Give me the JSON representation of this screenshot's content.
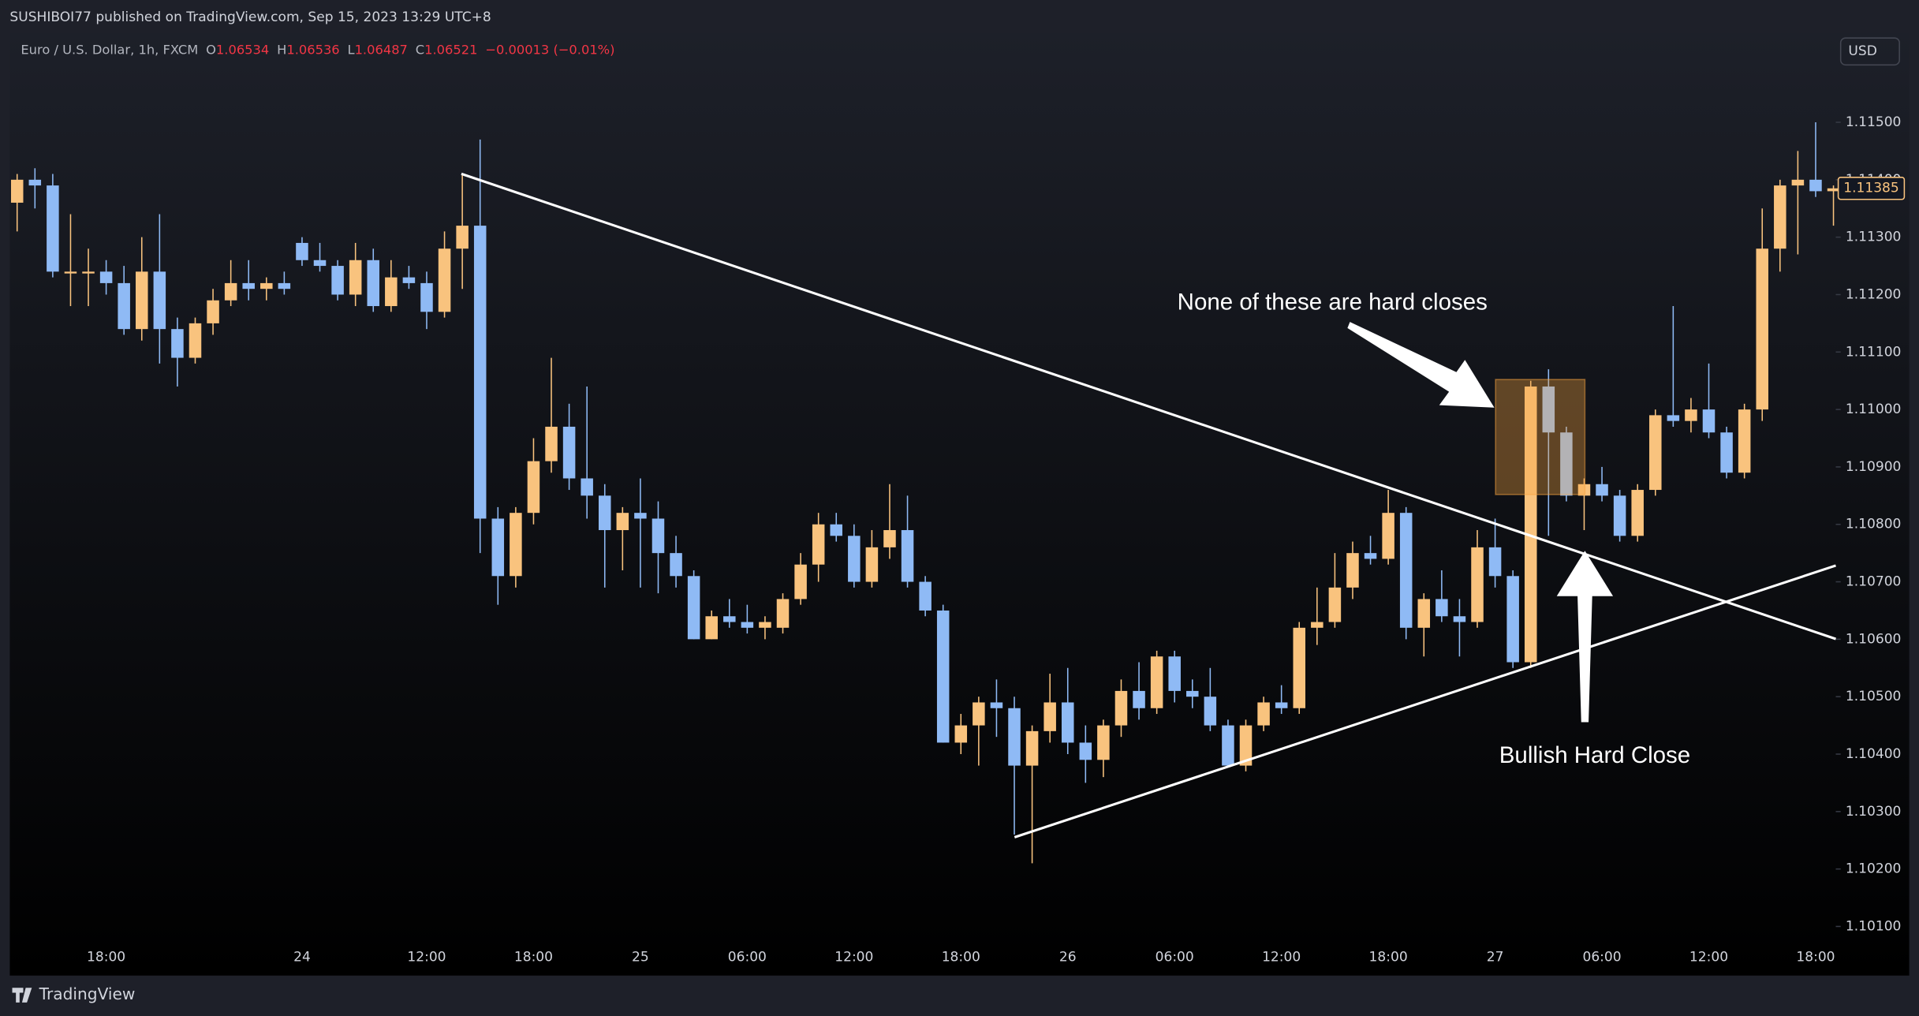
{
  "header": {
    "publisher": "SUSHIBOI77 published on TradingView.com, Sep 15, 2023 13:29 UTC+8"
  },
  "footer": {
    "brand": "TradingView"
  },
  "chart_data": {
    "type": "candlestick",
    "title": "Euro / U.S. Dollar, 1h, FXCM",
    "ohlc_legend": [
      {
        "label": "O",
        "value": "1.06534"
      },
      {
        "label": "H",
        "value": "1.06536"
      },
      {
        "label": "L",
        "value": "1.06487"
      },
      {
        "label": "C",
        "value": "1.06521"
      }
    ],
    "change": "−0.00013 (−0.01%)",
    "currency": "USD",
    "last_price_label": "1.11385",
    "annotations": [
      "None of these are hard closes",
      "Bullish Hard Close"
    ],
    "up_color": "#f9c37e",
    "down_color": "#8fbaf5",
    "grid": false,
    "categories": [
      null,
      null,
      null,
      null,
      null,
      "18:00",
      null,
      null,
      null,
      null,
      null,
      null,
      null,
      null,
      null,
      null,
      "24",
      null,
      null,
      null,
      null,
      null,
      null,
      "12:00",
      null,
      null,
      null,
      null,
      null,
      "18:00",
      null,
      null,
      null,
      null,
      null,
      "25",
      null,
      null,
      null,
      null,
      null,
      "06:00",
      null,
      null,
      null,
      null,
      null,
      "12:00",
      null,
      null,
      null,
      null,
      null,
      "18:00",
      null,
      null,
      null,
      null,
      null,
      "26",
      null,
      null,
      null,
      null,
      null,
      "06:00",
      null,
      null,
      null,
      null,
      null,
      "12:00",
      null,
      null,
      null,
      null,
      null,
      "18:00",
      null,
      null,
      null,
      null,
      null,
      "27",
      null,
      null,
      null,
      null,
      null,
      "06:00",
      null,
      null,
      null,
      null,
      null,
      "12:00",
      null,
      null,
      null,
      null,
      null,
      "18:00",
      null
    ],
    "open": [
      1.1136,
      1.114,
      1.1139,
      1.1124,
      1.1124,
      1.1124,
      1.1122,
      1.1114,
      1.1124,
      1.1114,
      1.1109,
      1.1115,
      1.1119,
      1.1122,
      1.1121,
      1.1122,
      1.1129,
      1.1126,
      1.1125,
      1.112,
      1.1126,
      1.1118,
      1.1123,
      1.1122,
      1.1117,
      1.1128,
      1.1132,
      1.1081,
      1.1071,
      1.1082,
      1.1091,
      1.1097,
      1.1088,
      1.1085,
      1.1079,
      1.1082,
      1.1081,
      1.1075,
      1.1071,
      1.106,
      1.1064,
      1.1063,
      1.1062,
      1.1062,
      1.1067,
      1.1073,
      1.108,
      1.1078,
      1.107,
      1.1076,
      1.1079,
      1.107,
      1.1065,
      1.1042,
      1.1045,
      1.1049,
      1.1048,
      1.1038,
      1.1044,
      1.1049,
      1.1042,
      1.1039,
      1.1045,
      1.1051,
      1.1048,
      1.1057,
      1.1051,
      1.105,
      1.1045,
      1.1038,
      1.1045,
      1.1049,
      1.1048,
      1.1062,
      1.1063,
      1.1069,
      1.1075,
      1.1074,
      1.1082,
      1.1062,
      1.1067,
      1.1064,
      1.1063,
      1.1076,
      1.1071,
      1.1056,
      1.1104,
      1.1096,
      1.1085,
      1.1087,
      1.1085,
      1.1078,
      1.1086,
      1.1099,
      1.1098,
      1.11,
      1.1096,
      1.1089,
      1.11,
      1.1128,
      1.1139,
      1.114,
      1.1138
    ],
    "high": [
      1.1141,
      1.1142,
      1.1141,
      1.1134,
      1.1128,
      1.1126,
      1.1125,
      1.113,
      1.1134,
      1.1116,
      1.1116,
      1.1121,
      1.1126,
      1.1126,
      1.1123,
      1.1124,
      1.113,
      1.1129,
      1.1126,
      1.1129,
      1.1128,
      1.1126,
      1.1125,
      1.1124,
      1.1131,
      1.1141,
      1.1147,
      1.1083,
      1.1083,
      1.1095,
      1.1109,
      1.1101,
      1.1104,
      1.1087,
      1.1083,
      1.1088,
      1.1084,
      1.1078,
      1.1072,
      1.1065,
      1.1067,
      1.1066,
      1.1064,
      1.1068,
      1.1075,
      1.1082,
      1.1082,
      1.108,
      1.1079,
      1.1087,
      1.1085,
      1.1071,
      1.1066,
      1.1047,
      1.105,
      1.1053,
      1.105,
      1.1045,
      1.1054,
      1.1055,
      1.1045,
      1.1046,
      1.1053,
      1.1056,
      1.1058,
      1.1058,
      1.1053,
      1.1055,
      1.1046,
      1.1046,
      1.105,
      1.1052,
      1.1063,
      1.1069,
      1.1075,
      1.1077,
      1.1078,
      1.1086,
      1.1083,
      1.1068,
      1.1072,
      1.1067,
      1.1079,
      1.1081,
      1.1072,
      1.1105,
      1.1107,
      1.1097,
      1.1088,
      1.109,
      1.1086,
      1.1087,
      1.11,
      1.1118,
      1.1102,
      1.1108,
      1.1097,
      1.1101,
      1.1135,
      1.114,
      1.1145,
      1.115,
      1.1139
    ],
    "low": [
      1.1131,
      1.1135,
      1.1123,
      1.1118,
      1.1118,
      1.112,
      1.1113,
      1.1112,
      1.1108,
      1.1104,
      1.1108,
      1.1113,
      1.1118,
      1.1119,
      1.1119,
      1.112,
      1.1125,
      1.1124,
      1.1119,
      1.1118,
      1.1117,
      1.1117,
      1.1121,
      1.1114,
      1.1116,
      1.1121,
      1.1075,
      1.1066,
      1.1069,
      1.108,
      1.1089,
      1.1086,
      1.1081,
      1.1069,
      1.1072,
      1.1069,
      1.1068,
      1.1069,
      1.106,
      1.106,
      1.1062,
      1.1061,
      1.106,
      1.1061,
      1.1066,
      1.107,
      1.1077,
      1.1069,
      1.1069,
      1.1074,
      1.1069,
      1.1064,
      1.1042,
      1.104,
      1.1038,
      1.1043,
      1.1026,
      1.1021,
      1.1042,
      1.104,
      1.1035,
      1.1036,
      1.1043,
      1.1046,
      1.1047,
      1.1049,
      1.1048,
      1.1044,
      1.1038,
      1.1037,
      1.1044,
      1.1047,
      1.1047,
      1.1059,
      1.1062,
      1.1067,
      1.1073,
      1.1073,
      1.106,
      1.1057,
      1.1063,
      1.1057,
      1.1062,
      1.1069,
      1.1055,
      1.1055,
      1.1078,
      1.1084,
      1.1079,
      1.1084,
      1.1077,
      1.1077,
      1.1085,
      1.1097,
      1.1096,
      1.1095,
      1.1088,
      1.1088,
      1.1098,
      1.1124,
      1.1127,
      1.1137,
      1.1132
    ],
    "close": [
      1.114,
      1.1139,
      1.1124,
      1.1124,
      1.1124,
      1.1122,
      1.1114,
      1.1124,
      1.1114,
      1.1109,
      1.1115,
      1.1119,
      1.1122,
      1.1121,
      1.1122,
      1.1121,
      1.1126,
      1.1125,
      1.112,
      1.1126,
      1.1118,
      1.1123,
      1.1122,
      1.1117,
      1.1128,
      1.1132,
      1.1081,
      1.1071,
      1.1082,
      1.1091,
      1.1097,
      1.1088,
      1.1085,
      1.1079,
      1.1082,
      1.1081,
      1.1075,
      1.1071,
      1.106,
      1.1064,
      1.1063,
      1.1062,
      1.1063,
      1.1067,
      1.1073,
      1.108,
      1.1078,
      1.107,
      1.1076,
      1.1079,
      1.107,
      1.1065,
      1.1042,
      1.1045,
      1.1049,
      1.1048,
      1.1038,
      1.1044,
      1.1049,
      1.1042,
      1.1039,
      1.1045,
      1.1051,
      1.1048,
      1.1057,
      1.1051,
      1.105,
      1.1045,
      1.1038,
      1.1045,
      1.1049,
      1.1048,
      1.1062,
      1.1063,
      1.1069,
      1.1075,
      1.1074,
      1.1082,
      1.1062,
      1.1067,
      1.1064,
      1.1063,
      1.1076,
      1.1071,
      1.1056,
      1.1104,
      1.1096,
      1.1085,
      1.1087,
      1.1085,
      1.1078,
      1.1086,
      1.1099,
      1.1098,
      1.11,
      1.1096,
      1.1089,
      1.11,
      1.1128,
      1.1139,
      1.114,
      1.1138,
      1.11385
    ],
    "ylim": [
      1.10023,
      1.11602
    ],
    "yticks": [
      {
        "value": 1.101,
        "label": "1.10100"
      },
      {
        "value": 1.102,
        "label": "1.10200"
      },
      {
        "value": 1.103,
        "label": "1.10300"
      },
      {
        "value": 1.104,
        "label": "1.10400"
      },
      {
        "value": 1.105,
        "label": "1.10500"
      },
      {
        "value": 1.106,
        "label": "1.10600"
      },
      {
        "value": 1.107,
        "label": "1.10700"
      },
      {
        "value": 1.108,
        "label": "1.10800"
      },
      {
        "value": 1.109,
        "label": "1.10900"
      },
      {
        "value": 1.11,
        "label": "1.11000"
      },
      {
        "value": 1.111,
        "label": "1.11100"
      },
      {
        "value": 1.112,
        "label": "1.11200"
      },
      {
        "value": 1.113,
        "label": "1.11300"
      },
      {
        "value": 1.114,
        "label": "1.11400"
      },
      {
        "value": 1.115,
        "label": "1.11500"
      }
    ]
  }
}
